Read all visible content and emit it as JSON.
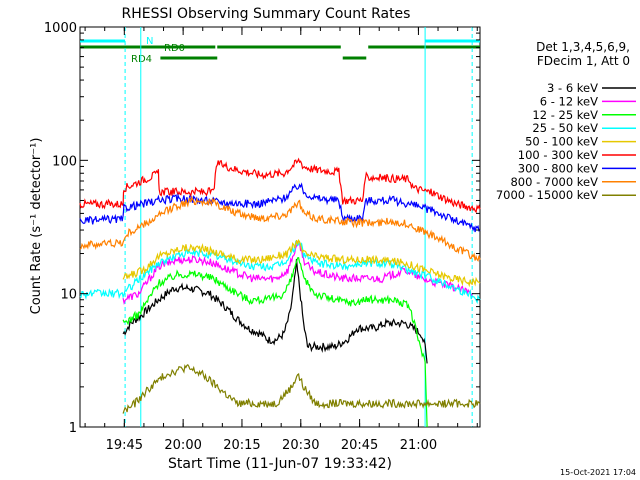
{
  "chart_data": {
    "type": "line",
    "title": "RHESSI Observing Summary Count Rates",
    "ylabel": "Count Rate (s⁻¹ detector⁻¹)",
    "xlabel": "Start Time (11-Jun-07 19:33:42)",
    "x_range_min": [
      0,
      102
    ],
    "x_tick_labels": [
      "19:45",
      "20:00",
      "20:15",
      "20:30",
      "20:45",
      "21:00"
    ],
    "x_ticks_min": [
      11.3,
      26.3,
      41.3,
      56.3,
      71.3,
      86.3
    ],
    "yscale": "log",
    "ylim": [
      1,
      1000
    ],
    "y_tick_labels": [
      "1",
      "10",
      "100",
      "1000"
    ],
    "y_ticks": [
      1,
      10,
      100,
      1000
    ],
    "grid": false,
    "legend_header": [
      "Det 1,3,4,5,6,9,",
      "FDecim 1, Att 0"
    ],
    "series": [
      {
        "name": "3 - 6 keV",
        "color": "#000000",
        "values": [
          [
            11,
            5
          ],
          [
            13,
            6
          ],
          [
            16,
            7
          ],
          [
            20,
            9
          ],
          [
            24,
            11
          ],
          [
            28,
            11
          ],
          [
            33,
            10
          ],
          [
            37,
            8
          ],
          [
            40,
            6.5
          ],
          [
            43,
            5.5
          ],
          [
            46,
            5
          ],
          [
            48,
            4.5
          ],
          [
            50,
            4.5
          ],
          [
            52,
            5
          ],
          [
            53.5,
            7
          ],
          [
            54.5,
            11
          ],
          [
            55.2,
            17
          ],
          [
            56,
            11
          ],
          [
            57,
            6
          ],
          [
            58,
            4
          ],
          [
            60,
            4
          ],
          [
            65,
            4
          ],
          [
            68,
            4.5
          ],
          [
            69.5,
            5
          ],
          [
            70.5,
            5.5
          ],
          [
            75,
            5.5
          ],
          [
            78,
            6
          ],
          [
            83,
            6
          ],
          [
            87,
            5
          ],
          [
            88,
            4
          ],
          [
            88.5,
            3
          ]
        ]
      },
      {
        "name": "6 - 12 keV",
        "color": "#ff00ff",
        "values": [
          [
            11,
            9
          ],
          [
            15,
            10
          ],
          [
            20,
            16
          ],
          [
            25,
            18
          ],
          [
            30,
            18
          ],
          [
            34,
            17
          ],
          [
            38,
            15
          ],
          [
            44,
            13
          ],
          [
            50,
            13
          ],
          [
            53,
            15
          ],
          [
            55,
            22
          ],
          [
            56,
            24
          ],
          [
            57,
            18
          ],
          [
            59,
            15
          ],
          [
            62,
            14
          ],
          [
            67,
            13
          ],
          [
            69,
            13
          ],
          [
            71,
            13
          ],
          [
            77,
            13
          ],
          [
            83,
            15
          ],
          [
            87,
            13
          ],
          [
            91,
            12
          ],
          [
            96,
            11
          ],
          [
            100,
            10
          ]
        ]
      },
      {
        "name": "12 - 25 keV",
        "color": "#00ff00",
        "values": [
          [
            11,
            6
          ],
          [
            15,
            7
          ],
          [
            20,
            12
          ],
          [
            25,
            14
          ],
          [
            30,
            14
          ],
          [
            34,
            13
          ],
          [
            38,
            11
          ],
          [
            43,
            9
          ],
          [
            48,
            9
          ],
          [
            52,
            10
          ],
          [
            54,
            13
          ],
          [
            55.5,
            19
          ],
          [
            57,
            13
          ],
          [
            60,
            10
          ],
          [
            65,
            9
          ],
          [
            70,
            8.5
          ],
          [
            72,
            9
          ],
          [
            76,
            9
          ],
          [
            80,
            9
          ],
          [
            84,
            8
          ],
          [
            88,
            3
          ],
          [
            88.5,
            1
          ]
        ]
      },
      {
        "name": "25 - 50 keV",
        "color": "#00ffff",
        "values": [
          [
            0,
            10
          ],
          [
            11,
            10
          ],
          [
            14,
            12
          ],
          [
            20,
            17
          ],
          [
            26,
            20
          ],
          [
            32,
            20
          ],
          [
            38,
            18
          ],
          [
            44,
            16
          ],
          [
            50,
            16
          ],
          [
            53,
            18
          ],
          [
            55,
            23
          ],
          [
            56,
            25
          ],
          [
            57,
            20
          ],
          [
            60,
            17
          ],
          [
            67,
            16
          ],
          [
            72,
            17
          ],
          [
            78,
            17
          ],
          [
            84,
            15
          ],
          [
            90,
            13
          ],
          [
            96,
            11
          ],
          [
            102,
            9
          ]
        ]
      },
      {
        "name": "50 - 100 keV",
        "color": "#e6c800",
        "values": [
          [
            11,
            13
          ],
          [
            16,
            15
          ],
          [
            20,
            19
          ],
          [
            26,
            22
          ],
          [
            30,
            22
          ],
          [
            36,
            20
          ],
          [
            40,
            18
          ],
          [
            46,
            18
          ],
          [
            53,
            20
          ],
          [
            55.5,
            25
          ],
          [
            57,
            20
          ],
          [
            60,
            19
          ],
          [
            67,
            18
          ],
          [
            75,
            18
          ],
          [
            83,
            17
          ],
          [
            88,
            15
          ],
          [
            95,
            13
          ],
          [
            102,
            12
          ]
        ]
      },
      {
        "name": "100 - 300 keV",
        "color": "#ff0000",
        "values": [
          [
            0,
            47
          ],
          [
            8,
            47
          ],
          [
            11,
            47
          ],
          [
            11.2,
            62
          ],
          [
            18,
            75
          ],
          [
            20,
            80
          ],
          [
            20.2,
            58
          ],
          [
            28,
            58
          ],
          [
            34,
            58
          ],
          [
            35,
            95
          ],
          [
            40,
            85
          ],
          [
            46,
            78
          ],
          [
            52,
            80
          ],
          [
            55,
            95
          ],
          [
            56,
            100
          ],
          [
            57,
            90
          ],
          [
            60,
            85
          ],
          [
            66,
            82
          ],
          [
            67,
            50
          ],
          [
            72,
            50
          ],
          [
            73,
            75
          ],
          [
            84,
            72
          ],
          [
            85,
            62
          ],
          [
            90,
            57
          ],
          [
            96,
            47
          ],
          [
            102,
            43
          ]
        ]
      },
      {
        "name": "300 - 800 keV",
        "color": "#0000ff",
        "values": [
          [
            0,
            35
          ],
          [
            8,
            36
          ],
          [
            11,
            36
          ],
          [
            11.2,
            44
          ],
          [
            16,
            47
          ],
          [
            20,
            50
          ],
          [
            26,
            52
          ],
          [
            32,
            50
          ],
          [
            38,
            48
          ],
          [
            45,
            47
          ],
          [
            52,
            52
          ],
          [
            55,
            62
          ],
          [
            56,
            66
          ],
          [
            57,
            58
          ],
          [
            60,
            52
          ],
          [
            66,
            50
          ],
          [
            67,
            37
          ],
          [
            72,
            37
          ],
          [
            73,
            50
          ],
          [
            80,
            50
          ],
          [
            84,
            47
          ],
          [
            90,
            42
          ],
          [
            96,
            35
          ],
          [
            102,
            30
          ]
        ]
      },
      {
        "name": "800 - 7000 keV",
        "color": "#ff8000",
        "values": [
          [
            0,
            23
          ],
          [
            8,
            24
          ],
          [
            11,
            24
          ],
          [
            12,
            28
          ],
          [
            18,
            35
          ],
          [
            24,
            45
          ],
          [
            29,
            50
          ],
          [
            34,
            48
          ],
          [
            40,
            40
          ],
          [
            46,
            37
          ],
          [
            52,
            39
          ],
          [
            55,
            45
          ],
          [
            56,
            48
          ],
          [
            57,
            40
          ],
          [
            60,
            37
          ],
          [
            66,
            35
          ],
          [
            70,
            34
          ],
          [
            76,
            34
          ],
          [
            80,
            35
          ],
          [
            84,
            33
          ],
          [
            90,
            27
          ],
          [
            96,
            22
          ],
          [
            102,
            18
          ]
        ]
      },
      {
        "name": "7000 - 15000 keV",
        "color": "#808000",
        "values": [
          [
            11,
            1.3
          ],
          [
            14,
            1.5
          ],
          [
            18,
            2
          ],
          [
            22,
            2.5
          ],
          [
            27,
            2.8
          ],
          [
            31,
            2.5
          ],
          [
            35,
            2
          ],
          [
            40,
            1.5
          ],
          [
            45,
            1.5
          ],
          [
            50,
            1.5
          ],
          [
            54,
            2
          ],
          [
            55.5,
            2.5
          ],
          [
            57,
            2
          ],
          [
            60,
            1.5
          ],
          [
            65,
            1.5
          ],
          [
            70,
            1.5
          ],
          [
            75,
            1.5
          ],
          [
            80,
            1.5
          ],
          [
            85,
            1.5
          ],
          [
            90,
            1.5
          ],
          [
            95,
            1.5
          ],
          [
            102,
            1.5
          ]
        ]
      }
    ],
    "flags": [
      {
        "label": "N",
        "color": "#00ffff",
        "segments": [
          [
            0,
            11.5
          ],
          [
            88,
            102
          ]
        ]
      },
      {
        "label": "RD0",
        "color": "#008000",
        "segments": [
          [
            0,
            34.5
          ],
          [
            35,
            66.5
          ],
          [
            73.5,
            102
          ]
        ]
      },
      {
        "label": "RD4",
        "color": "#008000",
        "segments": [
          [
            20.5,
            35
          ],
          [
            67,
            73
          ]
        ]
      }
    ],
    "vertical_markers_min": [
      11.5,
      15.5,
      88,
      100
    ]
  },
  "footer": {
    "timestamp": "15-Oct-2021 17:04"
  }
}
